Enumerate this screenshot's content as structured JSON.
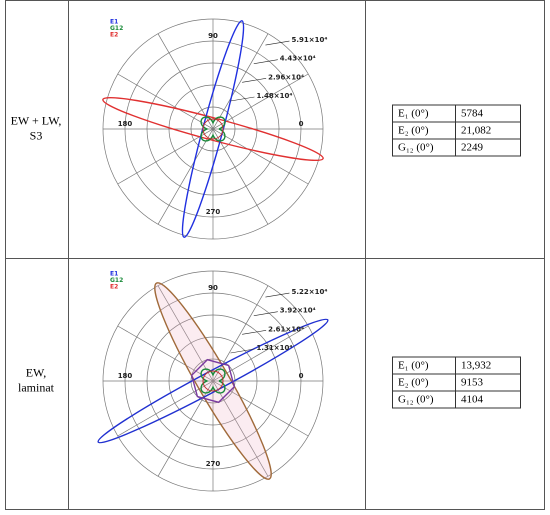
{
  "rows": [
    {
      "label": [
        "EW + LW,",
        "S3"
      ],
      "plot": {
        "legend": [
          "E1",
          "G12",
          "E2"
        ],
        "angle_labels": [
          "90",
          "180",
          "0",
          "270"
        ],
        "ring_labels": [
          "5.91×10⁴",
          "4.43×10⁴",
          "2.96×10⁴",
          "1.48×10⁴"
        ]
      },
      "table": [
        [
          "E₁ (0°)",
          "5784"
        ],
        [
          "E₂ (0°)",
          "21,082"
        ],
        [
          "G₁₂ (0°)",
          "2249"
        ]
      ]
    },
    {
      "label": [
        "EW,",
        "laminat"
      ],
      "plot": {
        "legend": [
          "E1",
          "G12",
          "E2"
        ],
        "angle_labels": [
          "90",
          "180",
          "0",
          "270"
        ],
        "ring_labels": [
          "5.22×10⁴",
          "3.92×10⁴",
          "2.61×10⁴",
          "1.31×10⁴"
        ]
      },
      "table": [
        [
          "E₁ (0°)",
          "13,932"
        ],
        [
          "E₂ (0°)",
          "9153"
        ],
        [
          "G₁₂ (0°)",
          "4104"
        ]
      ]
    }
  ]
}
